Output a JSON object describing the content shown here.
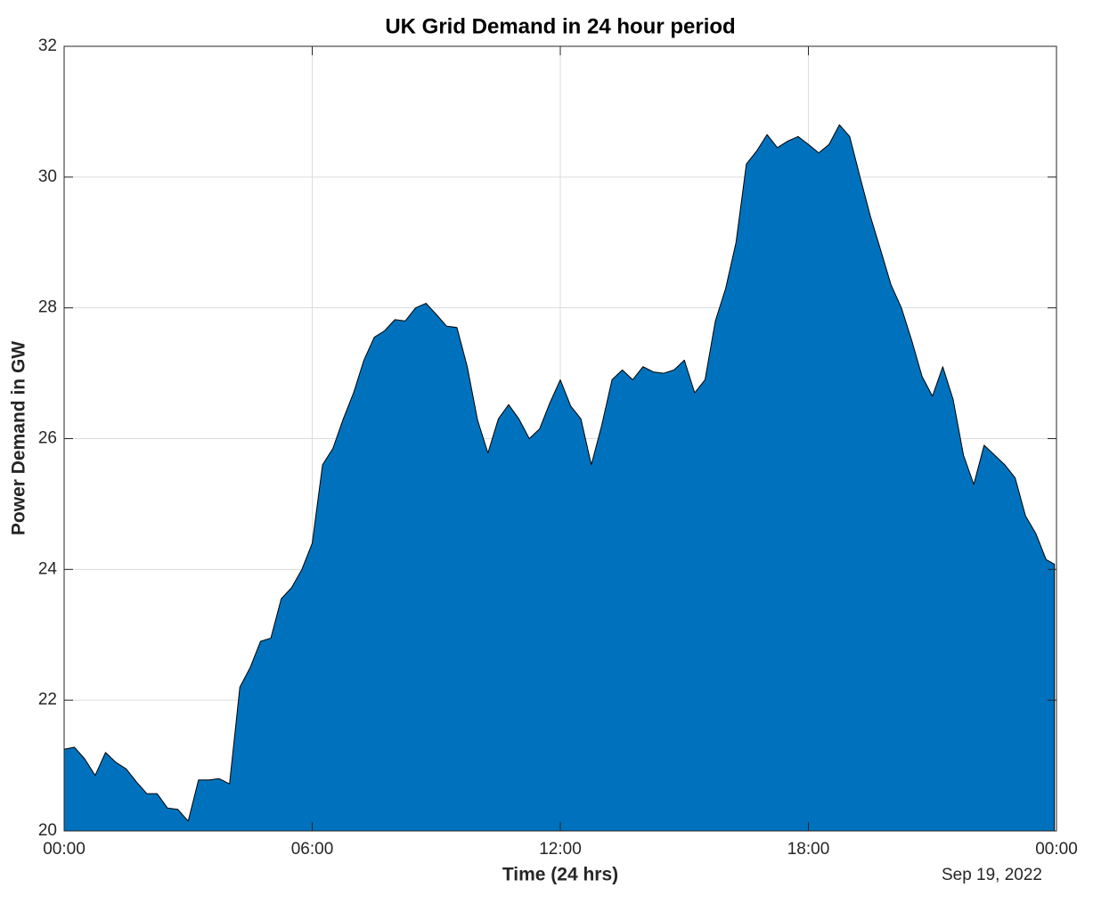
{
  "chart_data": {
    "type": "area",
    "title": "UK Grid Demand in 24 hour period",
    "xlabel": "Time (24 hrs)",
    "ylabel": "Power Demand in GW",
    "annotation": "Sep 19, 2022",
    "x": [
      0,
      0.25,
      0.5,
      0.75,
      1,
      1.25,
      1.5,
      1.75,
      2,
      2.25,
      2.5,
      2.75,
      3,
      3.25,
      3.5,
      3.75,
      4,
      4.25,
      4.5,
      4.75,
      5,
      5.25,
      5.5,
      5.75,
      6,
      6.25,
      6.5,
      6.75,
      7,
      7.25,
      7.5,
      7.75,
      8,
      8.25,
      8.5,
      8.75,
      9,
      9.25,
      9.5,
      9.75,
      10,
      10.25,
      10.5,
      10.75,
      11,
      11.25,
      11.5,
      11.75,
      12,
      12.25,
      12.5,
      12.75,
      13,
      13.25,
      13.5,
      13.75,
      14,
      14.25,
      14.5,
      14.75,
      15,
      15.25,
      15.5,
      15.75,
      16,
      16.25,
      16.5,
      16.75,
      17,
      17.25,
      17.5,
      17.75,
      18,
      18.25,
      18.5,
      18.75,
      19,
      19.25,
      19.5,
      19.75,
      20,
      20.25,
      20.5,
      20.75,
      21,
      21.25,
      21.5,
      21.75,
      22,
      22.25,
      22.5,
      22.75,
      23,
      23.25,
      23.5,
      23.75,
      23.95
    ],
    "series": [
      {
        "name": "Demand",
        "color": "#0072BD",
        "values": [
          21.25,
          21.28,
          21.1,
          20.85,
          21.2,
          21.05,
          20.95,
          20.75,
          20.57,
          20.57,
          20.35,
          20.33,
          20.15,
          20.78,
          20.78,
          20.8,
          20.72,
          22.2,
          22.5,
          22.9,
          22.95,
          23.55,
          23.72,
          24.0,
          24.4,
          25.6,
          25.85,
          26.3,
          26.7,
          27.2,
          27.55,
          27.65,
          27.82,
          27.8,
          28.0,
          28.07,
          27.9,
          27.72,
          27.7,
          27.1,
          26.28,
          25.78,
          26.3,
          26.52,
          26.3,
          26.0,
          26.15,
          26.55,
          26.9,
          26.5,
          26.3,
          25.6,
          26.2,
          26.9,
          27.05,
          26.9,
          27.1,
          27.02,
          27.0,
          27.05,
          27.2,
          26.7,
          26.9,
          27.8,
          28.3,
          29.0,
          30.2,
          30.4,
          30.65,
          30.45,
          30.55,
          30.62,
          30.5,
          30.37,
          30.5,
          30.8,
          30.62,
          30.0,
          29.4,
          28.88,
          28.35,
          28.0,
          27.5,
          26.95,
          26.65,
          27.1,
          26.6,
          25.75,
          25.3,
          25.9,
          25.75,
          25.6,
          25.4,
          24.82,
          24.55,
          24.15,
          24.08
        ]
      }
    ],
    "xlim": [
      0,
      24
    ],
    "xticks": [
      {
        "value": 0,
        "label": "00:00"
      },
      {
        "value": 6,
        "label": "06:00"
      },
      {
        "value": 12,
        "label": "12:00"
      },
      {
        "value": 18,
        "label": "18:00"
      },
      {
        "value": 24,
        "label": "00:00"
      }
    ],
    "ylim": [
      20,
      32
    ],
    "yticks": [
      20,
      22,
      24,
      26,
      28,
      30,
      32
    ],
    "grid": true
  }
}
